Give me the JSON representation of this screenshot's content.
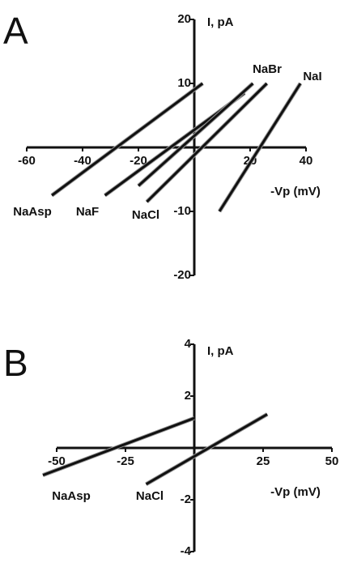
{
  "chart_data": [
    {
      "type": "line",
      "title": "A",
      "x_label": "-Vp (mV)",
      "y_label": "I, pA",
      "xlim": [
        -60,
        40
      ],
      "xticks": [
        -60,
        -40,
        -20,
        20,
        40
      ],
      "ylim": [
        -20,
        20
      ],
      "yticks": [
        -20,
        -10,
        10,
        20
      ],
      "series": [
        {
          "name": "NaAsp",
          "color": "#111111",
          "x": [
            -51,
            3
          ],
          "values": [
            -7.5,
            10
          ]
        },
        {
          "name": "NaF",
          "color": "#111111",
          "x": [
            -32,
            18
          ],
          "values": [
            -7.5,
            8.5
          ]
        },
        {
          "name": "NaBr",
          "color": "#111111",
          "x": [
            -20,
            21
          ],
          "values": [
            -6,
            10
          ]
        },
        {
          "name": "NaCl",
          "color": "#111111",
          "x": [
            -17,
            26
          ],
          "values": [
            -8.5,
            10
          ]
        },
        {
          "name": "NaI",
          "color": "#111111",
          "x": [
            9,
            38
          ],
          "values": [
            -10,
            10
          ]
        }
      ]
    },
    {
      "type": "line",
      "title": "B",
      "x_label": "-Vp (mV)",
      "y_label": "I, pA",
      "xlim": [
        -50,
        50
      ],
      "xticks": [
        -50,
        -25,
        25,
        50
      ],
      "ylim": [
        -4,
        4
      ],
      "yticks": [
        -4,
        -2,
        2,
        4
      ],
      "series": [
        {
          "name": "NaAsp",
          "color": "#111111",
          "x": [
            -55,
            0
          ],
          "values": [
            -1.05,
            1.15
          ]
        },
        {
          "name": "NaCl",
          "color": "#111111",
          "x": [
            -17.5,
            26.5
          ],
          "values": [
            -1.4,
            1.3
          ]
        }
      ]
    }
  ]
}
